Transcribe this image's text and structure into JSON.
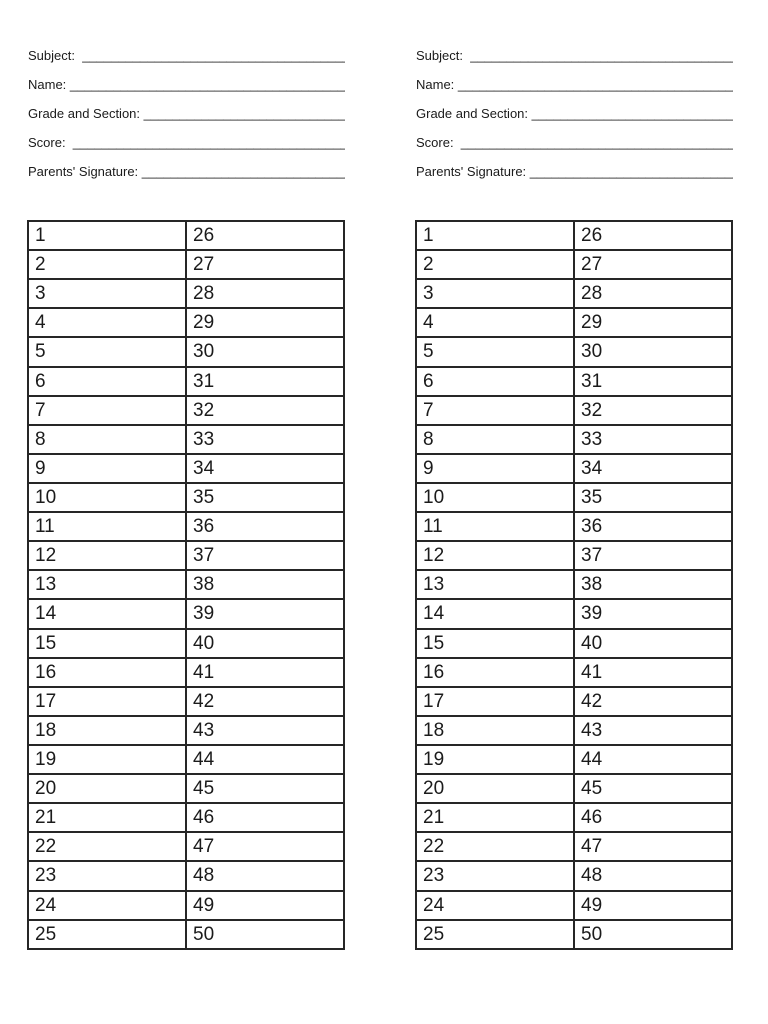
{
  "page": {
    "background": "#ffffff",
    "text_color": "#1b1b1b",
    "border_color": "#262626"
  },
  "columns": [
    {
      "name": "left-answer-sheet",
      "fields": [
        {
          "label": "Subject:",
          "blank": "  __________________________________________"
        },
        {
          "label": "Name:",
          "blank": " ______________________________________________"
        },
        {
          "label": "Grade and Section:",
          "blank": " __________________________________"
        },
        {
          "label": "Score:",
          "blank": "  ____________________________________________"
        },
        {
          "label": "Parents' Signature:",
          "blank": " _________________________________"
        }
      ],
      "answer_table": {
        "rows": [
          [
            1,
            26
          ],
          [
            2,
            27
          ],
          [
            3,
            28
          ],
          [
            4,
            29
          ],
          [
            5,
            30
          ],
          [
            6,
            31
          ],
          [
            7,
            32
          ],
          [
            8,
            33
          ],
          [
            9,
            34
          ],
          [
            10,
            35
          ],
          [
            11,
            36
          ],
          [
            12,
            37
          ],
          [
            13,
            38
          ],
          [
            14,
            39
          ],
          [
            15,
            40
          ],
          [
            16,
            41
          ],
          [
            17,
            42
          ],
          [
            18,
            43
          ],
          [
            19,
            44
          ],
          [
            20,
            45
          ],
          [
            21,
            46
          ],
          [
            22,
            47
          ],
          [
            23,
            48
          ],
          [
            24,
            49
          ],
          [
            25,
            50
          ]
        ]
      }
    },
    {
      "name": "right-answer-sheet",
      "fields": [
        {
          "label": "Subject:",
          "blank": "  __________________________________________"
        },
        {
          "label": "Name:",
          "blank": " ______________________________________________"
        },
        {
          "label": "Grade and Section:",
          "blank": " __________________________________"
        },
        {
          "label": "Score:",
          "blank": "  ____________________________________________"
        },
        {
          "label": "Parents' Signature:",
          "blank": " _________________________________"
        }
      ],
      "answer_table": {
        "rows": [
          [
            1,
            26
          ],
          [
            2,
            27
          ],
          [
            3,
            28
          ],
          [
            4,
            29
          ],
          [
            5,
            30
          ],
          [
            6,
            31
          ],
          [
            7,
            32
          ],
          [
            8,
            33
          ],
          [
            9,
            34
          ],
          [
            10,
            35
          ],
          [
            11,
            36
          ],
          [
            12,
            37
          ],
          [
            13,
            38
          ],
          [
            14,
            39
          ],
          [
            15,
            40
          ],
          [
            16,
            41
          ],
          [
            17,
            42
          ],
          [
            18,
            43
          ],
          [
            19,
            44
          ],
          [
            20,
            45
          ],
          [
            21,
            46
          ],
          [
            22,
            47
          ],
          [
            23,
            48
          ],
          [
            24,
            49
          ],
          [
            25,
            50
          ]
        ]
      }
    }
  ]
}
